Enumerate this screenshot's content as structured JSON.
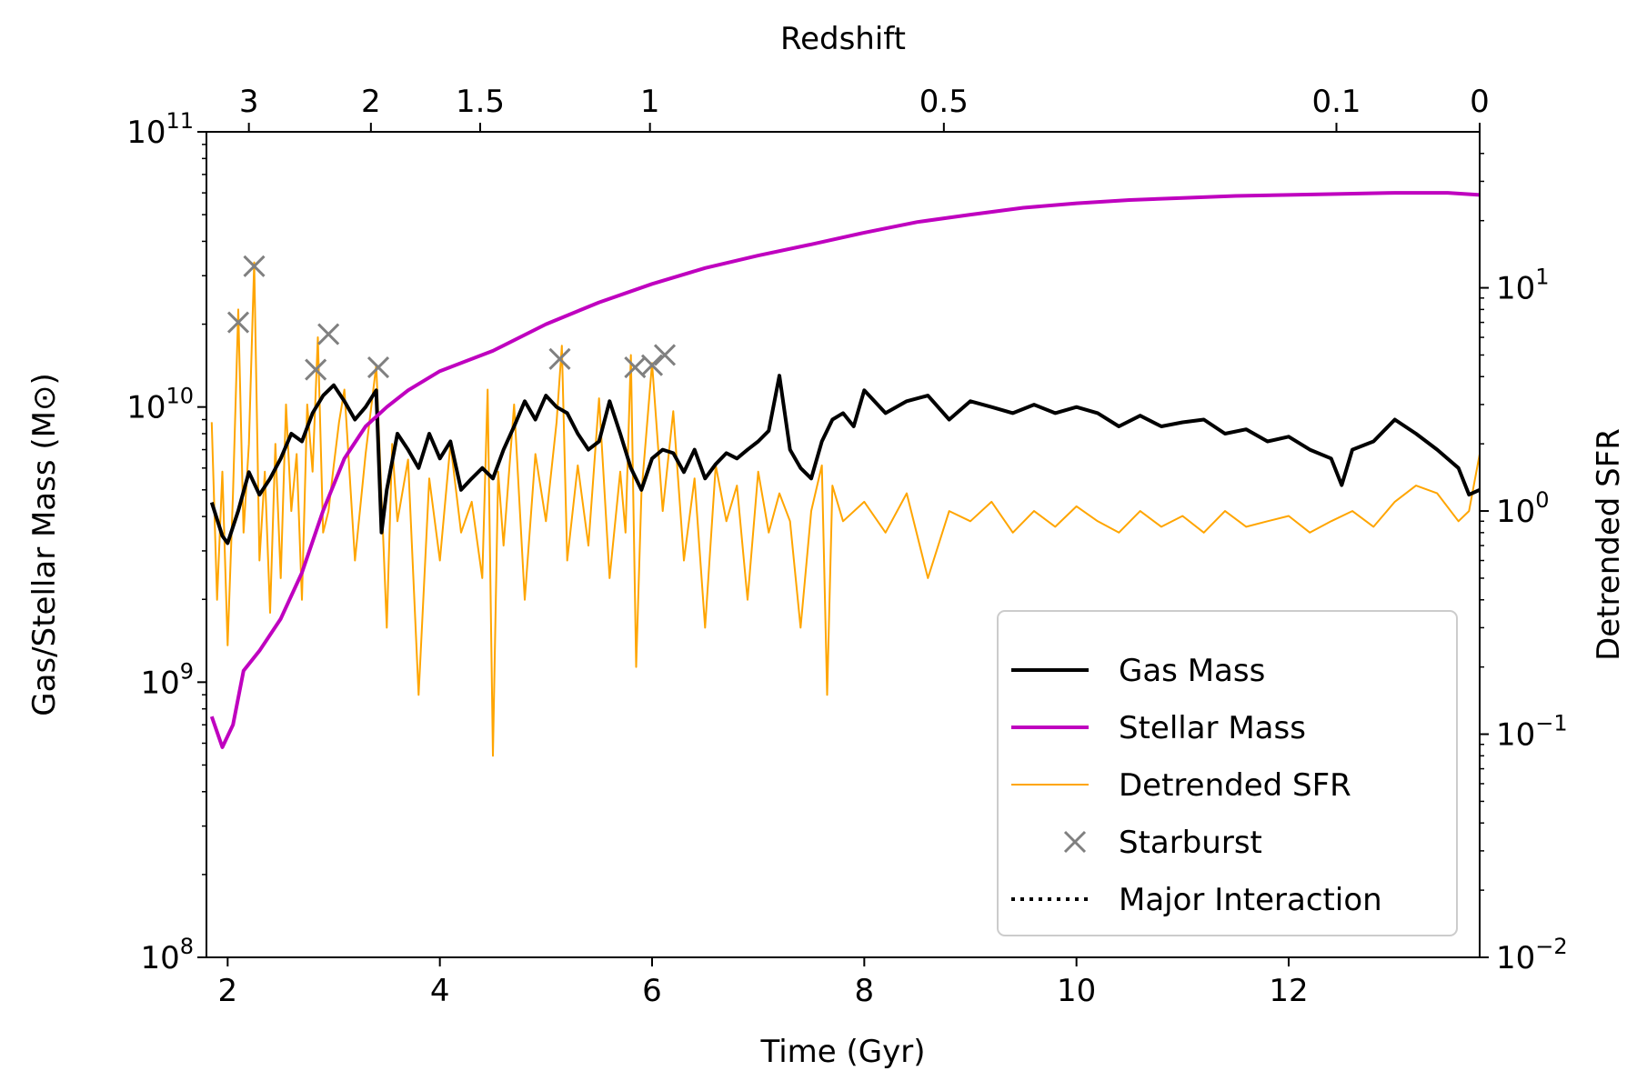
{
  "chart_data": {
    "type": "line",
    "top_axis_label": "Redshift",
    "xlabel": "Time (Gyr)",
    "ylabel_left": "Gas/Stellar Mass (M⊙)",
    "ylabel_right": "Detrended SFR",
    "x_range": [
      1.8,
      13.8
    ],
    "x_ticks": [
      2,
      4,
      6,
      8,
      10,
      12
    ],
    "y_left_scale": "log",
    "y_left_range": [
      100000000.0,
      100000000000.0
    ],
    "y_left_ticks": [
      {
        "value": 100000000.0,
        "base": "10",
        "exp": "8"
      },
      {
        "value": 1000000000.0,
        "base": "10",
        "exp": "9"
      },
      {
        "value": 10000000000.0,
        "base": "10",
        "exp": "10"
      },
      {
        "value": 100000000000.0,
        "base": "10",
        "exp": "11"
      }
    ],
    "y_right_scale": "log",
    "y_right_range": [
      0.01,
      50
    ],
    "y_right_ticks": [
      {
        "value": 0.01,
        "base": "10",
        "exp": "−2"
      },
      {
        "value": 0.1,
        "base": "10",
        "exp": "−1"
      },
      {
        "value": 1,
        "base": "10",
        "exp": "0"
      },
      {
        "value": 10,
        "base": "10",
        "exp": "1"
      }
    ],
    "redshift_ticks": [
      {
        "label": "3",
        "time": 2.2
      },
      {
        "label": "2",
        "time": 3.35
      },
      {
        "label": "1.5",
        "time": 4.38
      },
      {
        "label": "1",
        "time": 5.98
      },
      {
        "label": "0.5",
        "time": 8.75
      },
      {
        "label": "0.1",
        "time": 12.45
      },
      {
        "label": "0",
        "time": 13.8
      }
    ],
    "legend_position": "lower-right",
    "series": [
      {
        "name": "Gas Mass",
        "color": "#000000",
        "axis": "left",
        "x": [
          1.85,
          1.95,
          2.0,
          2.1,
          2.2,
          2.3,
          2.4,
          2.5,
          2.6,
          2.7,
          2.8,
          2.9,
          3.0,
          3.1,
          3.2,
          3.3,
          3.4,
          3.45,
          3.5,
          3.6,
          3.7,
          3.8,
          3.9,
          4.0,
          4.1,
          4.2,
          4.3,
          4.4,
          4.5,
          4.6,
          4.7,
          4.8,
          4.9,
          5.0,
          5.1,
          5.2,
          5.3,
          5.4,
          5.5,
          5.6,
          5.7,
          5.8,
          5.9,
          6.0,
          6.1,
          6.2,
          6.3,
          6.4,
          6.5,
          6.6,
          6.7,
          6.8,
          6.9,
          7.0,
          7.1,
          7.2,
          7.3,
          7.4,
          7.5,
          7.6,
          7.7,
          7.8,
          7.9,
          8.0,
          8.2,
          8.4,
          8.6,
          8.8,
          9.0,
          9.2,
          9.4,
          9.6,
          9.8,
          10.0,
          10.2,
          10.4,
          10.6,
          10.8,
          11.0,
          11.2,
          11.4,
          11.6,
          11.8,
          12.0,
          12.2,
          12.4,
          12.5,
          12.6,
          12.8,
          13.0,
          13.2,
          13.4,
          13.6,
          13.7,
          13.8
        ],
        "y": [
          4500000000.0,
          3400000000.0,
          3200000000.0,
          4200000000.0,
          5800000000.0,
          4800000000.0,
          5500000000.0,
          6500000000.0,
          8000000000.0,
          7500000000.0,
          9500000000.0,
          11000000000.0,
          12000000000.0,
          10500000000.0,
          9000000000.0,
          10000000000.0,
          11500000000.0,
          3500000000.0,
          5000000000.0,
          8000000000.0,
          7000000000.0,
          6000000000.0,
          8000000000.0,
          6500000000.0,
          7500000000.0,
          5000000000.0,
          5500000000.0,
          6000000000.0,
          5500000000.0,
          7000000000.0,
          8500000000.0,
          10500000000.0,
          9000000000.0,
          11000000000.0,
          10000000000.0,
          9500000000.0,
          8000000000.0,
          7000000000.0,
          7500000000.0,
          10500000000.0,
          8000000000.0,
          6000000000.0,
          5000000000.0,
          6500000000.0,
          7000000000.0,
          6800000000.0,
          5800000000.0,
          7000000000.0,
          5500000000.0,
          6200000000.0,
          6800000000.0,
          6500000000.0,
          7000000000.0,
          7500000000.0,
          8200000000.0,
          13000000000.0,
          7000000000.0,
          6000000000.0,
          5500000000.0,
          7500000000.0,
          9000000000.0,
          9500000000.0,
          8500000000.0,
          11500000000.0,
          9500000000.0,
          10500000000.0,
          11000000000.0,
          9000000000.0,
          10500000000.0,
          10000000000.0,
          9500000000.0,
          10200000000.0,
          9500000000.0,
          10000000000.0,
          9500000000.0,
          8500000000.0,
          9300000000.0,
          8500000000.0,
          8800000000.0,
          9000000000.0,
          8000000000.0,
          8300000000.0,
          7500000000.0,
          7800000000.0,
          7000000000.0,
          6500000000.0,
          5200000000.0,
          7000000000.0,
          7500000000.0,
          9000000000.0,
          8000000000.0,
          7000000000.0,
          6000000000.0,
          4800000000.0,
          5000000000.0
        ]
      },
      {
        "name": "Stellar Mass",
        "color": "#bf00bf",
        "axis": "left",
        "x": [
          1.85,
          1.95,
          2.05,
          2.15,
          2.3,
          2.5,
          2.7,
          2.9,
          3.1,
          3.3,
          3.5,
          3.7,
          4.0,
          4.5,
          5.0,
          5.5,
          6.0,
          6.5,
          7.0,
          7.5,
          8.0,
          8.5,
          9.0,
          9.5,
          10.0,
          10.5,
          11.0,
          11.5,
          12.0,
          12.5,
          13.0,
          13.5,
          13.8
        ],
        "y": [
          750000000.0,
          580000000.0,
          700000000.0,
          1100000000.0,
          1300000000.0,
          1700000000.0,
          2500000000.0,
          4200000000.0,
          6500000000.0,
          8500000000.0,
          10000000000.0,
          11500000000.0,
          13500000000.0,
          16000000000.0,
          20000000000.0,
          24000000000.0,
          28000000000.0,
          32000000000.0,
          35500000000.0,
          39000000000.0,
          43000000000.0,
          47000000000.0,
          50000000000.0,
          53000000000.0,
          55000000000.0,
          56500000000.0,
          57500000000.0,
          58500000000.0,
          59000000000.0,
          59500000000.0,
          60000000000.0,
          60000000000.0,
          59000000000.0
        ]
      },
      {
        "name": "Detrended SFR",
        "color": "#ffa500",
        "axis": "right",
        "x": [
          1.85,
          1.9,
          1.95,
          2.0,
          2.05,
          2.1,
          2.15,
          2.2,
          2.25,
          2.3,
          2.35,
          2.4,
          2.45,
          2.5,
          2.55,
          2.6,
          2.65,
          2.7,
          2.75,
          2.8,
          2.85,
          2.9,
          2.95,
          3.0,
          3.05,
          3.1,
          3.2,
          3.3,
          3.4,
          3.5,
          3.55,
          3.6,
          3.7,
          3.8,
          3.9,
          4.0,
          4.1,
          4.2,
          4.3,
          4.4,
          4.45,
          4.5,
          4.55,
          4.6,
          4.7,
          4.8,
          4.9,
          5.0,
          5.1,
          5.15,
          5.2,
          5.3,
          5.4,
          5.5,
          5.6,
          5.7,
          5.75,
          5.8,
          5.85,
          5.9,
          6.0,
          6.1,
          6.2,
          6.3,
          6.4,
          6.5,
          6.6,
          6.7,
          6.8,
          6.9,
          7.0,
          7.1,
          7.2,
          7.3,
          7.4,
          7.5,
          7.6,
          7.65,
          7.7,
          7.8,
          8.0,
          8.2,
          8.4,
          8.6,
          8.8,
          9.0,
          9.2,
          9.4,
          9.6,
          9.8,
          10.0,
          10.2,
          10.4,
          10.6,
          10.8,
          11.0,
          11.2,
          11.4,
          11.6,
          11.8,
          12.0,
          12.2,
          12.4,
          12.6,
          12.8,
          13.0,
          13.2,
          13.4,
          13.6,
          13.7,
          13.8
        ],
        "y": [
          2.5,
          0.4,
          1.5,
          0.25,
          1.2,
          8.0,
          0.8,
          2.0,
          13.0,
          0.6,
          1.5,
          0.35,
          2.0,
          0.5,
          3.0,
          1.0,
          1.8,
          0.4,
          3.0,
          1.5,
          6.0,
          0.8,
          1.0,
          1.6,
          2.5,
          3.5,
          0.6,
          1.8,
          4.5,
          0.3,
          2.0,
          0.9,
          1.7,
          0.15,
          1.4,
          0.6,
          2.0,
          0.8,
          1.1,
          0.5,
          3.5,
          0.08,
          1.5,
          0.7,
          3.0,
          0.4,
          1.8,
          0.9,
          2.5,
          5.5,
          0.6,
          1.6,
          0.7,
          3.2,
          0.5,
          1.5,
          0.8,
          5.0,
          0.2,
          1.2,
          4.6,
          1.0,
          2.8,
          0.6,
          1.4,
          0.3,
          1.6,
          0.9,
          1.3,
          0.4,
          1.5,
          0.8,
          1.2,
          0.9,
          0.3,
          1.0,
          1.6,
          0.15,
          1.3,
          0.9,
          1.1,
          0.8,
          1.2,
          0.5,
          1.0,
          0.9,
          1.1,
          0.8,
          1.0,
          0.85,
          1.05,
          0.9,
          0.8,
          1.0,
          0.85,
          0.95,
          0.8,
          1.0,
          0.85,
          0.9,
          0.95,
          0.8,
          0.9,
          1.0,
          0.85,
          1.1,
          1.3,
          1.2,
          0.9,
          1.0,
          1.8
        ]
      },
      {
        "name": "Starburst",
        "color": "#808080",
        "axis": "right",
        "marker": "x",
        "x": [
          2.1,
          2.25,
          2.83,
          2.95,
          3.42,
          5.13,
          5.84,
          6.0,
          6.12
        ],
        "y": [
          7.0,
          12.5,
          4.3,
          6.2,
          4.4,
          4.8,
          4.4,
          4.5,
          5.0
        ]
      },
      {
        "name": "Major Interaction",
        "color": "#000000",
        "axis": "left",
        "style": "dotted",
        "x": [],
        "y": []
      }
    ]
  }
}
